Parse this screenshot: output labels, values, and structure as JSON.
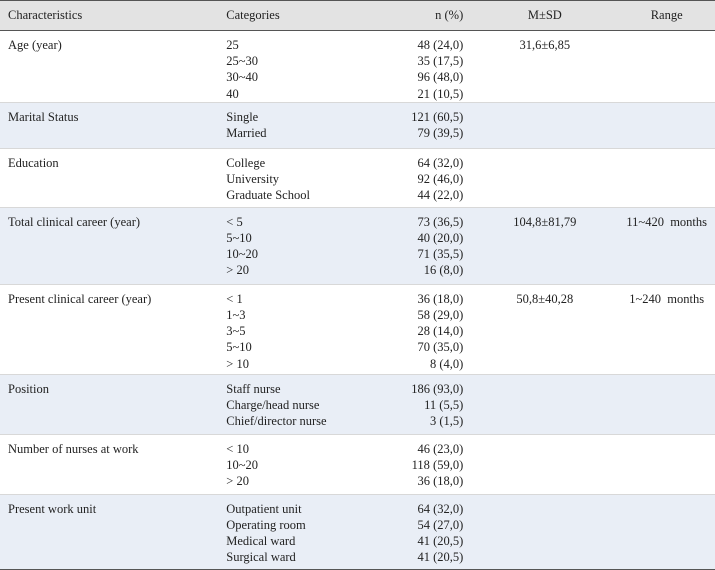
{
  "table": {
    "header": [
      "Characteristics",
      "Categories",
      "n (%)",
      "M±SD",
      "Range"
    ],
    "groups": [
      {
        "characteristic": "Age (year)",
        "categories": [
          "25",
          "25~30",
          "30~40",
          "40"
        ],
        "n": [
          "48 (24,0)",
          "35 (17,5)",
          "96 (48,0)",
          "21 (10,5)"
        ],
        "msd": "31,6±6,85"
      },
      {
        "characteristic": "Marital Status",
        "categories": [
          "Single",
          "Married"
        ],
        "n": [
          "121 (60,5)",
          "79 (39,5)"
        ]
      },
      {
        "characteristic": "Education",
        "categories": [
          "College",
          "University",
          "Graduate School"
        ],
        "n": [
          "64 (32,0)",
          "92 (46,0)",
          "44 (22,0)"
        ]
      },
      {
        "characteristic": "Total clinical career (year)",
        "categories": [
          "< 5",
          "5~10",
          "10~20",
          "> 20"
        ],
        "n": [
          "73 (36,5)",
          "40 (20,0)",
          "71 (35,5)",
          "16 (8,0)"
        ],
        "msd": "104,8±81,79",
        "range": "11~420  months"
      },
      {
        "characteristic": "Present clinical career (year)",
        "categories": [
          "< 1",
          "1~3",
          "3~5",
          "5~10",
          "> 10"
        ],
        "n": [
          "36 (18,0)",
          "58 (29,0)",
          "28 (14,0)",
          "70 (35,0)",
          "8 (4,0)"
        ],
        "msd": "50,8±40,28",
        "range": "1~240  months"
      },
      {
        "characteristic": "Position",
        "categories": [
          "Staff nurse",
          "Charge/head nurse",
          "Chief/director nurse"
        ],
        "n": [
          "186 (93,0)",
          "11 (5,5)",
          "3 (1,5)"
        ]
      },
      {
        "characteristic": "Number of nurses at work",
        "categories": [
          "< 10",
          "10~20",
          "> 20"
        ],
        "n": [
          "46 (23,0)",
          "118 (59,0)",
          "36 (18,0)"
        ]
      },
      {
        "characteristic": "Present work unit",
        "categories": [
          "Outpatient unit",
          "Operating room",
          "Medical ward",
          "Surgical ward"
        ],
        "n": [
          "64 (32,0)",
          "54 (27,0)",
          "41 (20,5)",
          "41 (20,5)"
        ]
      }
    ]
  }
}
